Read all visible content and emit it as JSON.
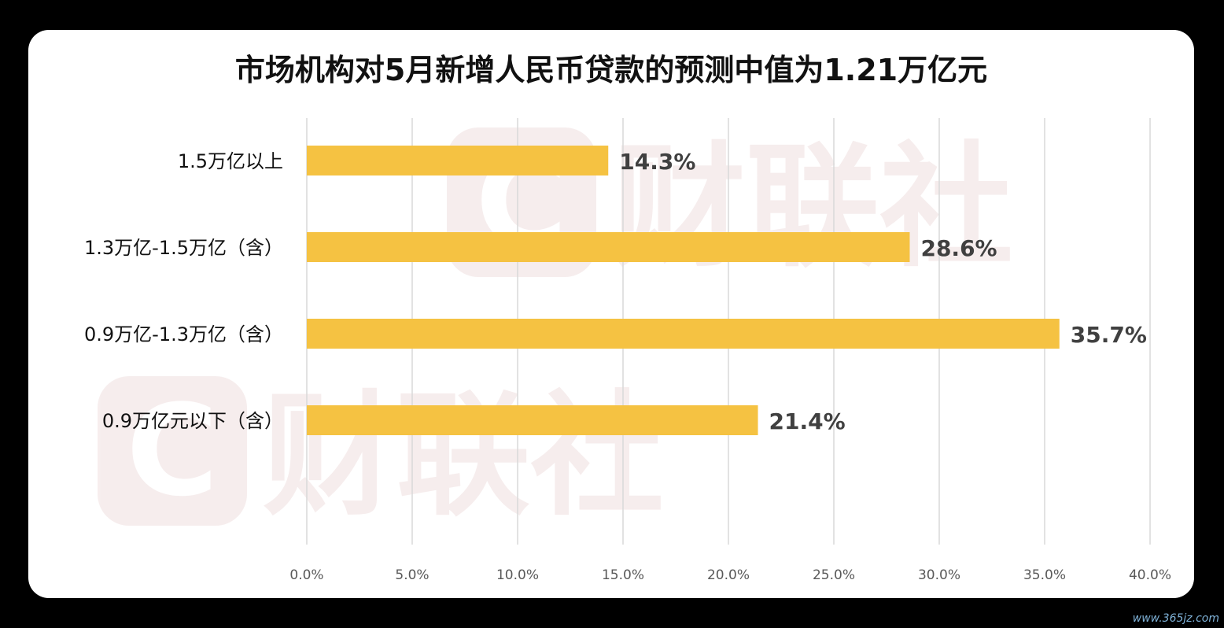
{
  "chart_data": {
    "type": "bar",
    "orientation": "horizontal",
    "title": "市场机构对5月新增人民币贷款的预测中值为1.21万亿元",
    "categories": [
      "1.5万亿以上",
      "1.3万亿-1.5万亿（含）",
      "0.9万亿-1.3万亿（含）",
      "0.9万亿元以下（含）"
    ],
    "values": [
      14.3,
      28.6,
      35.7,
      21.4
    ],
    "data_labels": [
      "14.3%",
      "28.6%",
      "35.7%",
      "21.4%"
    ],
    "xlim": [
      0,
      40
    ],
    "x_ticks": [
      "0.0%",
      "5.0%",
      "10.0%",
      "15.0%",
      "20.0%",
      "25.0%",
      "30.0%",
      "35.0%",
      "40.0%"
    ],
    "grid": "vertical",
    "legend": "none"
  },
  "colors": {
    "bar": "#F5C242",
    "grid": "#D9D9D9",
    "background": "#000000",
    "card": "#FFFFFF",
    "watermark": "#F0E0E0"
  },
  "watermark": {
    "brand_text": "财联社",
    "logo_letter": "C"
  },
  "site_mark": "www.365jz.com"
}
